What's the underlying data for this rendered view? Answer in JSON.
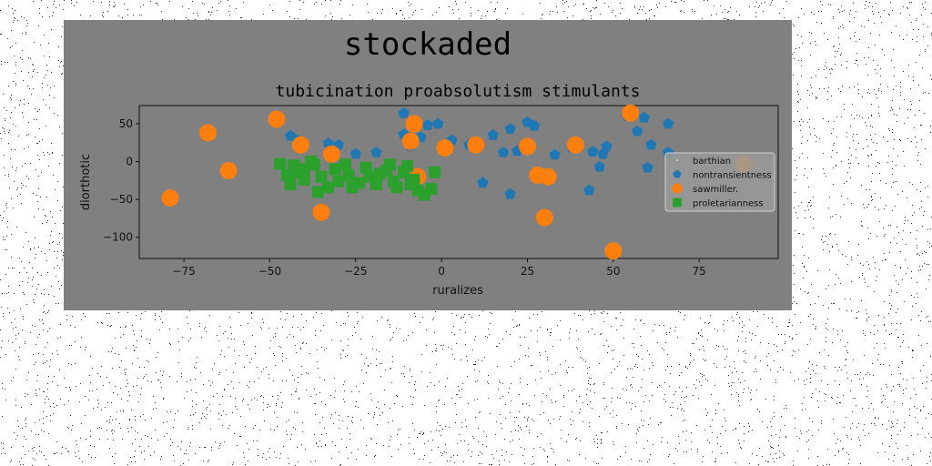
{
  "chart_data": {
    "type": "scatter",
    "suptitle": "stockaded",
    "title": "tubicination proabsolutism stimulants",
    "xlabel": "ruralizes",
    "ylabel": "diorthotic",
    "xlim": [
      -88,
      98
    ],
    "ylim": [
      -128,
      74
    ],
    "xticks": [
      -75,
      -50,
      -25,
      0,
      25,
      50,
      75
    ],
    "yticks": [
      -100,
      -50,
      0,
      50
    ],
    "xtick_labels": [
      "−75",
      "−50",
      "−25",
      "0",
      "25",
      "50",
      "75"
    ],
    "ytick_labels": [
      "−100",
      "−50",
      "0",
      "50"
    ],
    "grid": false,
    "legend_position": "center-right",
    "series": [
      {
        "name": "barthian",
        "marker": "dot",
        "color": "#c8c8c8",
        "points": []
      },
      {
        "name": "nontransientness",
        "marker": "pentagon",
        "color": "#1f77b4",
        "points": [
          [
            -11,
            64
          ],
          [
            -4,
            48
          ],
          [
            -1,
            50
          ],
          [
            -11,
            36
          ],
          [
            -44,
            34
          ],
          [
            -42,
            28
          ],
          [
            -33,
            24
          ],
          [
            -30,
            22
          ],
          [
            -25,
            10
          ],
          [
            -19,
            12
          ],
          [
            -9,
            21
          ],
          [
            -6,
            32
          ],
          [
            3,
            28
          ],
          [
            8,
            22
          ],
          [
            15,
            35
          ],
          [
            20,
            43
          ],
          [
            25,
            52
          ],
          [
            27,
            47
          ],
          [
            18,
            12
          ],
          [
            22,
            14
          ],
          [
            33,
            9
          ],
          [
            38,
            18
          ],
          [
            44,
            13
          ],
          [
            48,
            20
          ],
          [
            47,
            10
          ],
          [
            46,
            -7
          ],
          [
            43,
            -38
          ],
          [
            20,
            -43
          ],
          [
            12,
            -28
          ],
          [
            54,
            60
          ],
          [
            57,
            40
          ],
          [
            59,
            58
          ],
          [
            61,
            22
          ],
          [
            66,
            50
          ],
          [
            66,
            12
          ],
          [
            60,
            -8
          ],
          [
            31,
            -20
          ]
        ]
      },
      {
        "name": "sawmiller.",
        "marker": "circle",
        "color": "#ff7f0e",
        "points": [
          [
            -79,
            -48
          ],
          [
            -68,
            38
          ],
          [
            -62,
            -12
          ],
          [
            -48,
            56
          ],
          [
            -41,
            22
          ],
          [
            -35,
            -67
          ],
          [
            -32,
            10
          ],
          [
            -8,
            50
          ],
          [
            -9,
            27
          ],
          [
            -7,
            -20
          ],
          [
            1,
            18
          ],
          [
            10,
            22
          ],
          [
            25,
            20
          ],
          [
            28,
            -18
          ],
          [
            31,
            -20
          ],
          [
            30,
            -74
          ],
          [
            39,
            22
          ],
          [
            55,
            64
          ],
          [
            50,
            -118
          ],
          [
            88,
            -4
          ]
        ]
      },
      {
        "name": "proletarianness",
        "marker": "square",
        "color": "#2ca02c",
        "points": [
          [
            -47,
            -3
          ],
          [
            -43,
            -5
          ],
          [
            -40,
            -10
          ],
          [
            -38,
            0
          ],
          [
            -45,
            -18
          ],
          [
            -44,
            -30
          ],
          [
            -40,
            -24
          ],
          [
            -37,
            -4
          ],
          [
            -35,
            -20
          ],
          [
            -33,
            -34
          ],
          [
            -31,
            -10
          ],
          [
            -30,
            -26
          ],
          [
            -28,
            -4
          ],
          [
            -27,
            -18
          ],
          [
            -24,
            -28
          ],
          [
            -22,
            -8
          ],
          [
            -21,
            -20
          ],
          [
            -19,
            -30
          ],
          [
            -16,
            -12
          ],
          [
            -15,
            -4
          ],
          [
            -14,
            -26
          ],
          [
            -13,
            -34
          ],
          [
            -11,
            -14
          ],
          [
            -10,
            -6
          ],
          [
            -8,
            -24
          ],
          [
            -7,
            -38
          ],
          [
            -5,
            -44
          ],
          [
            -2,
            -14
          ],
          [
            -36,
            -40
          ],
          [
            -42,
            -14
          ],
          [
            -26,
            -34
          ],
          [
            -18,
            -16
          ],
          [
            -3,
            -36
          ],
          [
            -9,
            -30
          ]
        ]
      }
    ]
  }
}
